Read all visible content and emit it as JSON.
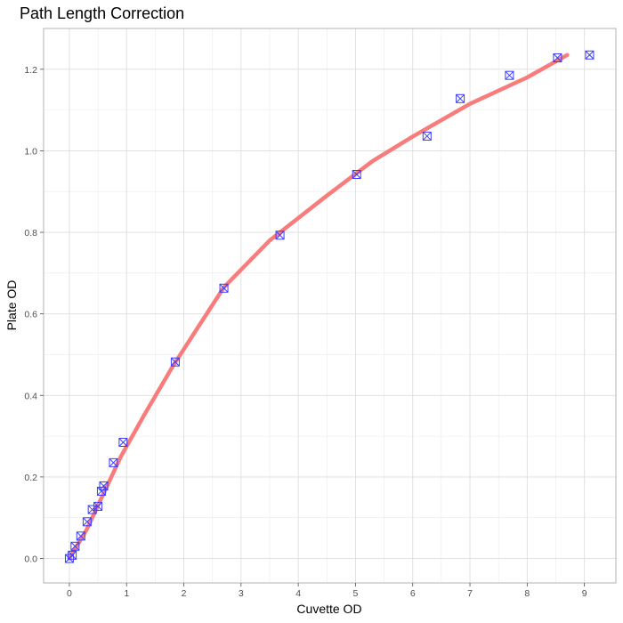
{
  "chart_data": {
    "type": "scatter",
    "title": "Path Length Correction",
    "xlabel": "Cuvette OD",
    "ylabel": "Plate OD",
    "xlim": [
      -0.45,
      9.55
    ],
    "ylim": [
      -0.06,
      1.3
    ],
    "x_ticks": [
      0,
      1,
      2,
      3,
      4,
      5,
      6,
      7,
      8,
      9
    ],
    "y_ticks": [
      0.0,
      0.2,
      0.4,
      0.6,
      0.8,
      1.0,
      1.2
    ],
    "x_tick_labels": [
      "0",
      "1",
      "2",
      "3",
      "4",
      "5",
      "6",
      "7",
      "8",
      "9"
    ],
    "y_tick_labels": [
      "0.0",
      "0.2",
      "0.4",
      "0.6",
      "0.8",
      "1.0",
      "1.2"
    ],
    "grid": true,
    "legend": "none",
    "series": [
      {
        "kind": "points",
        "marker": "boxed-x",
        "color": "#3b3bff",
        "x": [
          0.0,
          0.05,
          0.1,
          0.2,
          0.31,
          0.4,
          0.5,
          0.56,
          0.6,
          0.77,
          0.94,
          1.85,
          2.7,
          3.68,
          5.02,
          6.25,
          6.83,
          7.69,
          8.53,
          9.09
        ],
        "y": [
          0.0,
          0.008,
          0.03,
          0.055,
          0.09,
          0.12,
          0.128,
          0.165,
          0.178,
          0.235,
          0.285,
          0.482,
          0.663,
          0.793,
          0.942,
          1.036,
          1.128,
          1.185,
          1.228,
          1.235
        ]
      },
      {
        "kind": "line",
        "color": "#f87c7c",
        "x": [
          0.0,
          0.3,
          0.6,
          0.9,
          1.3,
          1.8,
          2.7,
          3.5,
          4.5,
          5.3,
          6.0,
          7.0,
          8.0,
          8.7
        ],
        "y": [
          0.0,
          0.07,
          0.16,
          0.25,
          0.35,
          0.47,
          0.665,
          0.78,
          0.89,
          0.975,
          1.035,
          1.115,
          1.18,
          1.235
        ]
      }
    ]
  }
}
